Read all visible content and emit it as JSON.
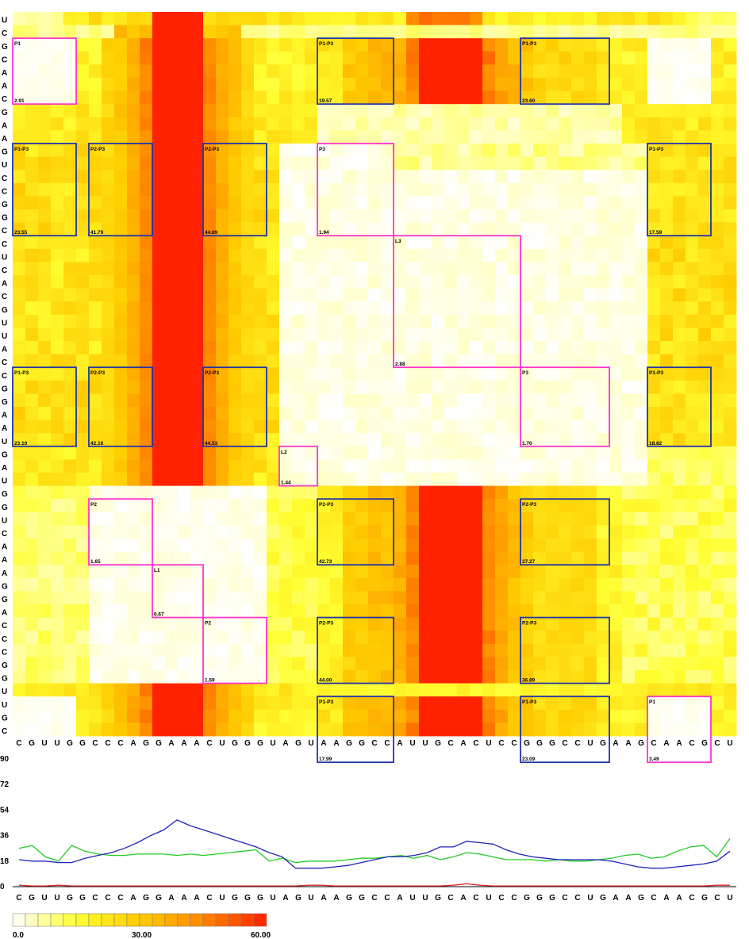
{
  "chart_data": [
    {
      "type": "heatmap",
      "sequence": "CGUUGGCCCAGGAAACUGGGUAGUAAGGCCAUUGCACUCCGGGCCUGAAGCAACGCU",
      "row_sequence": "UCGCAACGAAGUCCGGCCUCACGUUACCGGAAUGAUGGUCAAAGGACCCGGUUGC",
      "color_scale": {
        "min": 0.0,
        "mid": 30.0,
        "max": 60.0,
        "colors": [
          "#ffffff",
          "#ffff33",
          "#ffcc00",
          "#ff8800",
          "#ff2200"
        ]
      },
      "regions": [
        {
          "label": "P1",
          "value": "2.91",
          "kind": "self",
          "c0": 0,
          "c1": 4,
          "r0": 2,
          "r1": 6
        },
        {
          "label": "P1-P3",
          "value": "19.57",
          "kind": "pair",
          "c0": 24,
          "c1": 29,
          "r0": 2,
          "r1": 6
        },
        {
          "label": "P1-P3",
          "value": "23.60",
          "kind": "pair",
          "c0": 40,
          "c1": 46,
          "r0": 2,
          "r1": 6
        },
        {
          "label": "P1-P3",
          "value": "23.55",
          "kind": "pair",
          "c0": 0,
          "c1": 4,
          "r0": 10,
          "r1": 16
        },
        {
          "label": "P2-P3",
          "value": "41.79",
          "kind": "pair",
          "c0": 6,
          "c1": 10,
          "r0": 10,
          "r1": 16
        },
        {
          "label": "P2-P3",
          "value": "44.89",
          "kind": "pair",
          "c0": 15,
          "c1": 19,
          "r0": 10,
          "r1": 16
        },
        {
          "label": "P3",
          "value": "1.94",
          "kind": "self",
          "c0": 24,
          "c1": 29,
          "r0": 10,
          "r1": 16
        },
        {
          "label": "P1-P3",
          "value": "17.59",
          "kind": "pair",
          "c0": 50,
          "c1": 54,
          "r0": 10,
          "r1": 16
        },
        {
          "label": "L3",
          "value": "2.88",
          "kind": "self",
          "c0": 30,
          "c1": 39,
          "r0": 17,
          "r1": 26
        },
        {
          "label": "P1-P3",
          "value": "23.10",
          "kind": "pair",
          "c0": 0,
          "c1": 4,
          "r0": 27,
          "r1": 32
        },
        {
          "label": "P2-P3",
          "value": "42.16",
          "kind": "pair",
          "c0": 6,
          "c1": 10,
          "r0": 27,
          "r1": 32
        },
        {
          "label": "P2-P3",
          "value": "44.53",
          "kind": "pair",
          "c0": 15,
          "c1": 19,
          "r0": 27,
          "r1": 32
        },
        {
          "label": "P3",
          "value": "1.70",
          "kind": "self",
          "c0": 40,
          "c1": 46,
          "r0": 27,
          "r1": 32
        },
        {
          "label": "P1-P3",
          "value": "18.82",
          "kind": "pair",
          "c0": 50,
          "c1": 54,
          "r0": 27,
          "r1": 32
        },
        {
          "label": "L2",
          "value": "1.44",
          "kind": "self",
          "c0": 21,
          "c1": 23,
          "r0": 33,
          "r1": 35
        },
        {
          "label": "P2",
          "value": "1.65",
          "kind": "self",
          "c0": 6,
          "c1": 10,
          "r0": 37,
          "r1": 41
        },
        {
          "label": "P2-P3",
          "value": "42.73",
          "kind": "pair",
          "c0": 24,
          "c1": 29,
          "r0": 37,
          "r1": 41
        },
        {
          "label": "P2-P3",
          "value": "37.27",
          "kind": "pair",
          "c0": 40,
          "c1": 46,
          "r0": 37,
          "r1": 41
        },
        {
          "label": "L1",
          "value": "0.67",
          "kind": "self",
          "c0": 11,
          "c1": 14,
          "r0": 42,
          "r1": 45
        },
        {
          "label": "P2",
          "value": "1.59",
          "kind": "self",
          "c0": 15,
          "c1": 19,
          "r0": 46,
          "r1": 50
        },
        {
          "label": "P2-P3",
          "value": "44.00",
          "kind": "pair",
          "c0": 24,
          "c1": 29,
          "r0": 46,
          "r1": 50
        },
        {
          "label": "P2-P3",
          "value": "36.89",
          "kind": "pair",
          "c0": 40,
          "c1": 46,
          "r0": 46,
          "r1": 50
        },
        {
          "label": "P1-P3",
          "value": "17.99",
          "kind": "pair",
          "c0": 24,
          "c1": 29,
          "r0": 52,
          "r1": 56
        },
        {
          "label": "P1-P3",
          "value": "23.09",
          "kind": "pair",
          "c0": 40,
          "c1": 46,
          "r0": 52,
          "r1": 56
        },
        {
          "label": "P1",
          "value": "3.49",
          "kind": "self",
          "c0": 50,
          "c1": 54,
          "r0": 52,
          "r1": 56
        }
      ],
      "colorbar_ticks": [
        "0.0",
        "30.00",
        "60.00"
      ]
    },
    {
      "type": "line",
      "ylim": [
        0,
        90
      ],
      "y_ticks": [
        "0",
        "18",
        "36",
        "54",
        "72",
        "90"
      ],
      "series": [
        {
          "color": "#22cc22",
          "values": [
            27,
            29,
            21,
            18,
            29,
            25,
            23,
            22,
            22,
            23,
            23,
            23,
            22,
            23,
            22,
            23,
            24,
            25,
            26,
            18,
            20,
            17,
            18,
            18,
            18,
            19,
            20,
            20,
            21,
            22,
            20,
            22,
            19,
            21,
            24,
            23,
            21,
            19,
            19,
            19,
            18,
            19,
            18,
            18,
            19,
            20,
            22,
            23,
            20,
            21,
            25,
            28,
            29,
            21,
            34
          ]
        },
        {
          "color": "#2222bb",
          "values": [
            19,
            18,
            18,
            17,
            17,
            20,
            22,
            24,
            27,
            31,
            36,
            40,
            47,
            43,
            40,
            37,
            34,
            31,
            28,
            24,
            21,
            13,
            13,
            13,
            14,
            15,
            17,
            19,
            21,
            21,
            22,
            24,
            28,
            28,
            32,
            31,
            30,
            26,
            23,
            21,
            20,
            19,
            19,
            19,
            19,
            18,
            16,
            14,
            13,
            13,
            14,
            15,
            16,
            18,
            25
          ]
        },
        {
          "color": "#dd2222",
          "values": [
            1,
            0.5,
            0.5,
            1,
            0.5,
            0.5,
            0.5,
            0.5,
            0.5,
            0.5,
            0.5,
            0.5,
            0.5,
            0.5,
            0.5,
            0.5,
            0.5,
            0.5,
            0.5,
            0.5,
            0.5,
            0.5,
            1,
            1,
            0.5,
            0.5,
            0.5,
            0.5,
            0.5,
            0.5,
            0.5,
            0.5,
            0.5,
            1,
            2,
            1,
            0.5,
            0.5,
            0.5,
            0.5,
            0.5,
            0.5,
            0.5,
            0.5,
            0.5,
            0.5,
            0.5,
            0.5,
            0.5,
            0.5,
            0.5,
            0.5,
            0.5,
            1,
            1
          ]
        }
      ]
    }
  ]
}
